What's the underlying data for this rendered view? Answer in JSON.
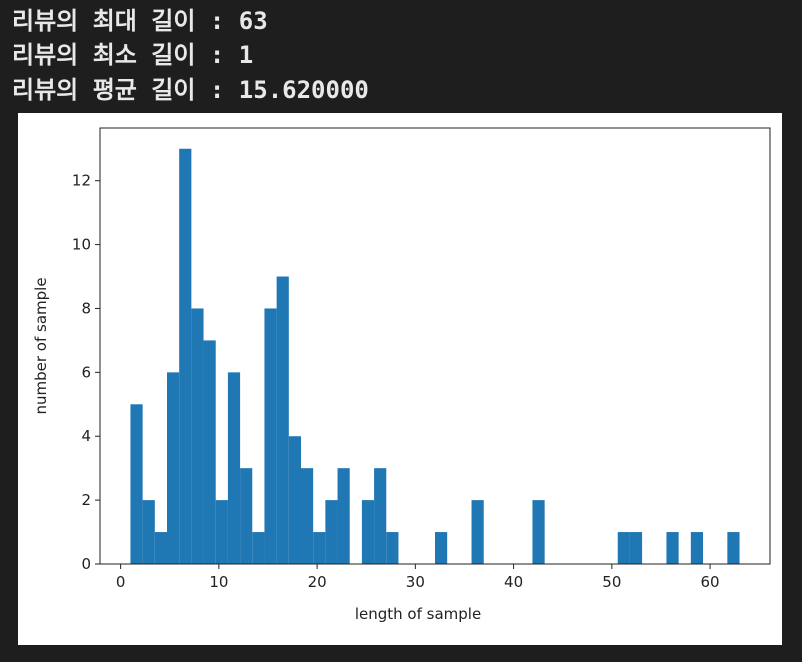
{
  "output_lines": [
    "리뷰의 최대 길이 : 63",
    "리뷰의 최소 길이 : 1",
    "리뷰의 평균 길이 : 15.620000"
  ],
  "chart_data": {
    "type": "histogram",
    "xlabel": "length of sample",
    "ylabel": "number of sample",
    "bins": [
      1,
      2.24,
      3.48,
      4.72,
      5.96,
      7.2,
      8.44,
      9.68,
      10.92,
      12.16,
      13.4,
      14.64,
      15.88,
      17.12,
      18.36,
      19.6,
      20.84,
      22.08,
      23.32,
      24.56,
      25.8,
      27.04,
      28.28,
      29.52,
      30.76,
      32,
      33.24,
      34.48,
      35.72,
      36.96,
      38.2,
      39.44,
      40.68,
      41.92,
      43.16,
      44.4,
      45.64,
      46.88,
      48.12,
      49.36,
      50.6,
      51.84,
      53.08,
      54.32,
      55.56,
      56.8,
      58.04,
      59.28,
      60.52,
      61.76,
      63
    ],
    "values": [
      5,
      2,
      1,
      6,
      13,
      8,
      7,
      2,
      6,
      3,
      1,
      8,
      9,
      4,
      3,
      1,
      2,
      3,
      0,
      2,
      3,
      1,
      0,
      0,
      0,
      1,
      0,
      0,
      2,
      0,
      0,
      0,
      0,
      2,
      0,
      0,
      0,
      0,
      0,
      0,
      1,
      1,
      0,
      0,
      1,
      0,
      1,
      0,
      0,
      1
    ],
    "color": "#1f77b4",
    "xlim": [
      -2.1,
      66.1
    ],
    "ylim": [
      0,
      13.65
    ],
    "xticks": [
      0,
      10,
      20,
      30,
      40,
      50,
      60
    ],
    "yticks": [
      0,
      2,
      4,
      6,
      8,
      10,
      12
    ]
  }
}
